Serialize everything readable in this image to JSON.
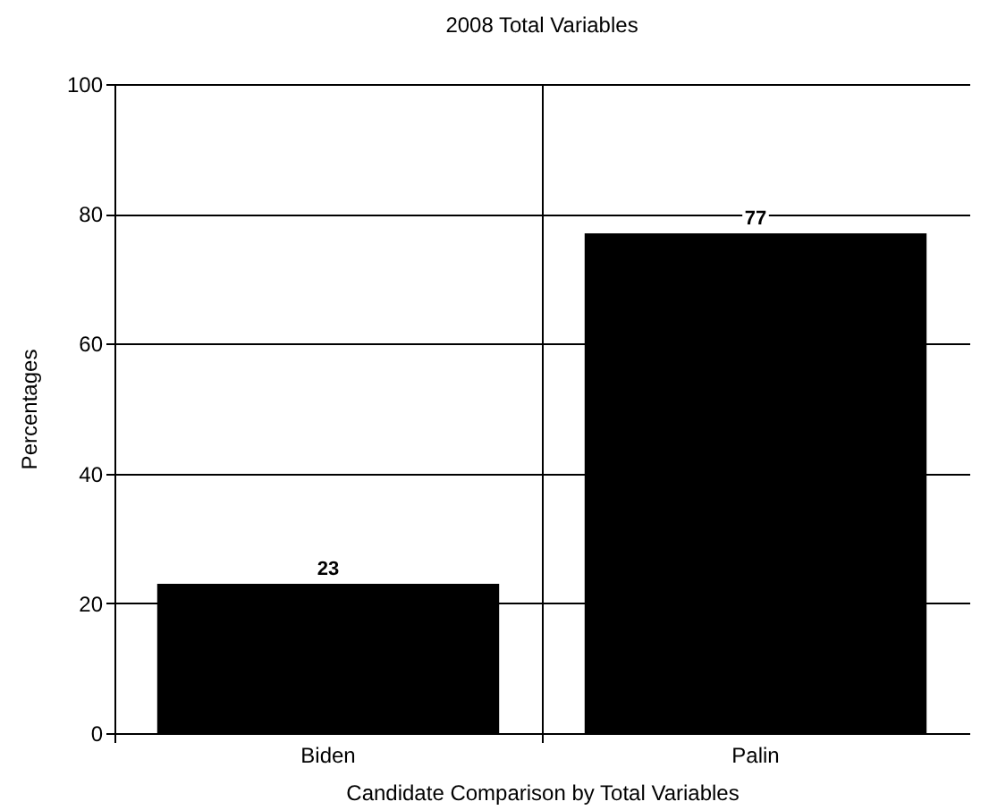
{
  "chart_data": {
    "type": "bar",
    "title": "2008 Total Variables",
    "xlabel": "Candidate Comparison by Total Variables",
    "ylabel": "Percentages",
    "categories": [
      "Biden",
      "Palin"
    ],
    "values": [
      23,
      77
    ],
    "color": "#000000",
    "ylim": [
      0,
      100
    ],
    "yticks": [
      0,
      20,
      40,
      60,
      80,
      100
    ],
    "grid": true,
    "data_labels": true
  }
}
